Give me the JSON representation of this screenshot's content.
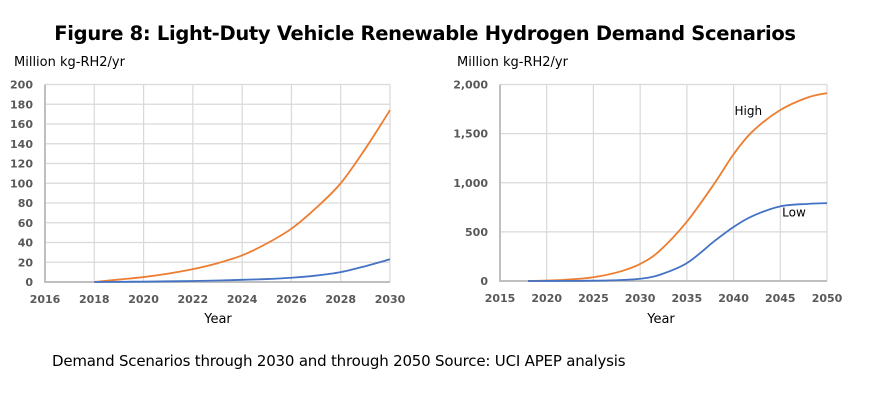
{
  "figure": {
    "title": "Figure 8: Light-Duty Vehicle Renewable Hydrogen Demand Scenarios",
    "caption": "Demand Scenarios through 2030 and through 2050   Source: UCI APEP analysis"
  },
  "colors": {
    "high": "#ED7D31",
    "low": "#4472C4",
    "grid": "#D9D9D9",
    "axis": "#BFBFBF"
  },
  "chart_data": [
    {
      "type": "line",
      "title": "",
      "ylabel": "Million kg-RH2/yr",
      "xlabel": "Year",
      "xlim": [
        2016,
        2030
      ],
      "ylim": [
        0,
        200
      ],
      "xticks": [
        2016,
        2018,
        2020,
        2022,
        2024,
        2026,
        2028,
        2030
      ],
      "xtick_labels": [
        "2016",
        "2018",
        "2020",
        "2022",
        "2024",
        "2026",
        "2028",
        "2030"
      ],
      "yticks": [
        0,
        20,
        40,
        60,
        80,
        100,
        120,
        140,
        160,
        180,
        200
      ],
      "ytick_labels": [
        "0",
        "20",
        "40",
        "60",
        "80",
        "100",
        "120",
        "140",
        "160",
        "180",
        "200"
      ],
      "grid": true,
      "legend": "none",
      "series": [
        {
          "name": "High",
          "color_key": "high",
          "x": [
            2018,
            2019,
            2020,
            2021,
            2022,
            2023,
            2024,
            2025,
            2026,
            2027,
            2028,
            2029,
            2030
          ],
          "values": [
            0,
            2.5,
            5,
            8.5,
            13,
            19,
            27,
            39,
            54,
            75,
            100,
            135,
            174
          ]
        },
        {
          "name": "Low",
          "color_key": "low",
          "x": [
            2018,
            2019,
            2020,
            2021,
            2022,
            2023,
            2024,
            2025,
            2026,
            2027,
            2028,
            2029,
            2030
          ],
          "values": [
            0,
            0.2,
            0.4,
            0.7,
            1,
            1.5,
            2.2,
            3,
            4.3,
            6.5,
            10,
            16,
            23
          ]
        }
      ],
      "annotations": []
    },
    {
      "type": "line",
      "title": "",
      "ylabel": "Million kg-RH2/yr",
      "xlabel": "Year",
      "xlim": [
        2015,
        2050
      ],
      "ylim": [
        0,
        2000
      ],
      "xticks": [
        2015,
        2020,
        2025,
        2030,
        2035,
        2040,
        2045,
        2050
      ],
      "xtick_labels": [
        "2015",
        "2020",
        "2025",
        "2030",
        "2035",
        "2040",
        "2045",
        "2050"
      ],
      "yticks": [
        0,
        500,
        1000,
        1500,
        2000
      ],
      "ytick_labels": [
        "0",
        "500",
        "1,000",
        "1,500",
        "2,000"
      ],
      "grid": true,
      "legend": "none",
      "series": [
        {
          "name": "High",
          "color_key": "high",
          "x": [
            2018,
            2020,
            2022,
            2025,
            2028,
            2030,
            2032,
            2035,
            2038,
            2040,
            2042,
            2045,
            2048,
            2050
          ],
          "values": [
            0,
            5,
            13,
            38,
            100,
            174,
            300,
            604,
            1000,
            1290,
            1520,
            1740,
            1870,
            1912
          ]
        },
        {
          "name": "Low",
          "color_key": "low",
          "x": [
            2018,
            2020,
            2022,
            2025,
            2028,
            2030,
            2032,
            2035,
            2038,
            2040,
            2042,
            2045,
            2048,
            2050
          ],
          "values": [
            0,
            0.4,
            1,
            3,
            10,
            23,
            60,
            182,
            410,
            550,
            660,
            760,
            785,
            792
          ]
        }
      ],
      "annotations": [
        {
          "text": "High",
          "x": 2040.1,
          "y": 1690
        },
        {
          "text": "Low",
          "x": 2045.2,
          "y": 655
        }
      ]
    }
  ]
}
